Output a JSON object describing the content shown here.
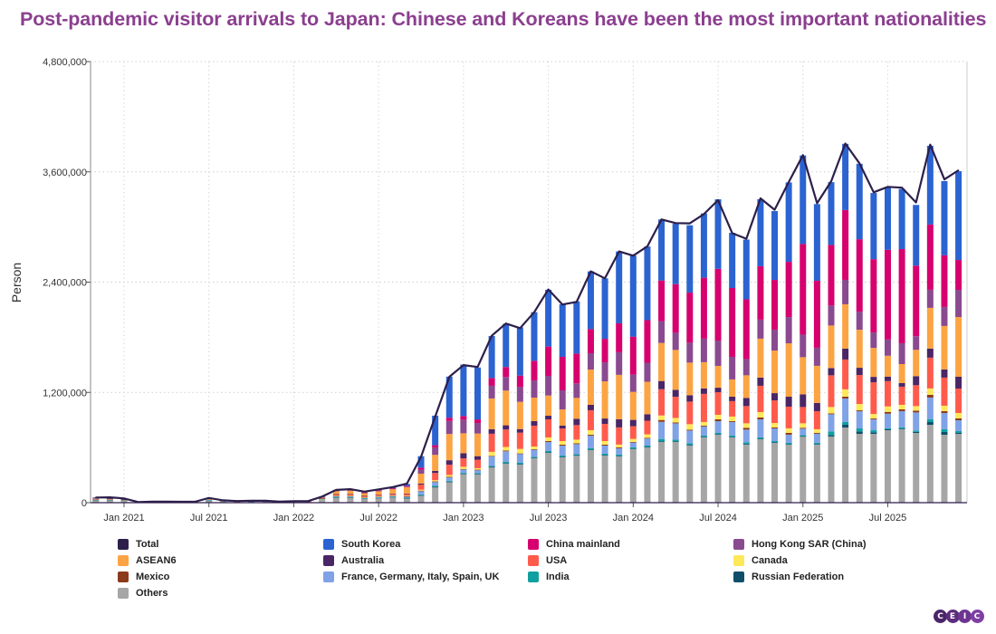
{
  "title": "Post-pandemic visitor arrivals to Japan: Chinese and Koreans have been the most important nationalities",
  "logo": {
    "text": [
      "C",
      "E",
      "I",
      "C"
    ],
    "colors": [
      "#4b2468",
      "#5c2c7d",
      "#6d3590",
      "#7e3fa3"
    ]
  },
  "chart_data": {
    "type": "bar",
    "stacked": true,
    "title": "Post-pandemic visitor arrivals to Japan: Chinese and Koreans have been the most important nationalities",
    "ylabel": "Person",
    "xlabel": "",
    "ylim": [
      0,
      4800000
    ],
    "yticks": [
      "0",
      "1,200,000",
      "2,400,000",
      "3,600,000",
      "4,800,000"
    ],
    "ytick_values": [
      0,
      1200000,
      2400000,
      3600000,
      4800000
    ],
    "xticks": [
      "Jan 2021",
      "Jul 2021",
      "Jan 2022",
      "Jul 2022",
      "Jan 2023",
      "Jul 2023",
      "Jan 2024",
      "Jul 2024",
      "Jan 2025",
      "Jul 2025"
    ],
    "xtick_months": [
      "2021-01",
      "2021-07",
      "2022-01",
      "2022-07",
      "2023-01",
      "2023-07",
      "2024-01",
      "2024-07",
      "2025-01",
      "2025-07"
    ],
    "grid": true,
    "legend_position": "bottom",
    "categories": [
      "2020-11",
      "2020-12",
      "2021-01",
      "2021-02",
      "2021-03",
      "2021-04",
      "2021-05",
      "2021-06",
      "2021-07",
      "2021-08",
      "2021-09",
      "2021-10",
      "2021-11",
      "2021-12",
      "2022-01",
      "2022-02",
      "2022-03",
      "2022-04",
      "2022-05",
      "2022-06",
      "2022-07",
      "2022-08",
      "2022-09",
      "2022-10",
      "2022-11",
      "2022-12",
      "2023-01",
      "2023-02",
      "2023-03",
      "2023-04",
      "2023-05",
      "2023-06",
      "2023-07",
      "2023-08",
      "2023-09",
      "2023-10",
      "2023-11",
      "2023-12",
      "2024-01",
      "2024-02",
      "2024-03",
      "2024-04",
      "2024-05",
      "2024-06",
      "2024-07",
      "2024-08",
      "2024-09",
      "2024-10",
      "2024-11",
      "2024-12",
      "2025-01",
      "2025-02",
      "2025-03",
      "2025-04",
      "2025-05",
      "2025-06",
      "2025-07",
      "2025-08",
      "2025-09",
      "2025-10",
      "2025-11",
      "2025-12"
    ],
    "total": {
      "name": "Total",
      "type": "line",
      "color": "#2d1f4a",
      "values": [
        56000,
        58000,
        46000,
        7000,
        12000,
        11000,
        10000,
        10000,
        51000,
        26000,
        18000,
        22000,
        21000,
        12000,
        17000,
        17000,
        66000,
        139000,
        147000,
        120000,
        145000,
        170000,
        207000,
        499000,
        935000,
        1370000,
        1497000,
        1476000,
        1817000,
        1950000,
        1899000,
        2073000,
        2320000,
        2157000,
        2184000,
        2517000,
        2441000,
        2734000,
        2688000,
        2788000,
        3082000,
        3043000,
        3040000,
        3140000,
        3292000,
        2932000,
        2872000,
        3312000,
        3188000,
        3489000,
        3782000,
        3258000,
        3498000,
        3908000,
        3693000,
        3378000,
        3437000,
        3428000,
        3267000,
        3896000,
        3518000,
        3617000
      ]
    },
    "series": [
      {
        "name": "Others",
        "color": "#a6a6a6",
        "values": [
          30000,
          31000,
          25000,
          3000,
          7000,
          6000,
          6000,
          6000,
          23000,
          15000,
          10000,
          11000,
          11000,
          7000,
          10000,
          10000,
          34000,
          60000,
          59000,
          44000,
          52000,
          62000,
          50000,
          80000,
          170000,
          227000,
          315000,
          310000,
          385000,
          424000,
          414000,
          483000,
          542000,
          493000,
          512000,
          572000,
          512000,
          503000,
          582000,
          601000,
          660000,
          660000,
          621000,
          710000,
          739000,
          710000,
          631000,
          690000,
          650000,
          631000,
          720000,
          631000,
          720000,
          818000,
          749000,
          749000,
          788000,
          798000,
          759000,
          847000,
          739000,
          749000
        ]
      },
      {
        "name": "Russian Federation",
        "color": "#104e6a",
        "values": [
          1000,
          1000,
          1000,
          0,
          0,
          0,
          0,
          0,
          1000,
          0,
          0,
          0,
          0,
          0,
          0,
          0,
          0,
          1000,
          1000,
          1000,
          1000,
          1000,
          1000,
          2000,
          2000,
          2000,
          2000,
          2000,
          4000,
          6000,
          6000,
          6000,
          6000,
          6000,
          5000,
          6000,
          6000,
          6000,
          6000,
          6000,
          8000,
          8000,
          8000,
          6000,
          6000,
          6000,
          8000,
          6000,
          6000,
          6000,
          4000,
          6000,
          16000,
          30000,
          26000,
          16000,
          10000,
          7000,
          12000,
          30000,
          30000,
          10000
        ]
      },
      {
        "name": "India",
        "color": "#10a0a0",
        "values": [
          1000,
          1000,
          1000,
          0,
          0,
          0,
          0,
          0,
          1000,
          1000,
          0,
          1000,
          0,
          0,
          1000,
          1000,
          2000,
          3000,
          3000,
          2000,
          2000,
          3000,
          3000,
          8000,
          13000,
          10000,
          8000,
          8000,
          10000,
          14000,
          14000,
          10000,
          14000,
          14000,
          12000,
          14000,
          14000,
          14000,
          14000,
          14000,
          25000,
          18000,
          18000,
          14000,
          14000,
          14000,
          18000,
          14000,
          14000,
          14000,
          12000,
          14000,
          39000,
          30000,
          33000,
          23000,
          12000,
          14000,
          14000,
          30000,
          30000,
          20000
        ]
      },
      {
        "name": "France, Germany, Italy, Spain, UK",
        "color": "#80a2e6",
        "values": [
          4000,
          4000,
          3000,
          1000,
          1000,
          1000,
          1000,
          1000,
          8000,
          2000,
          1000,
          2000,
          2000,
          1000,
          1000,
          1000,
          4000,
          10000,
          12000,
          10000,
          12000,
          12000,
          15000,
          39000,
          43000,
          39000,
          39000,
          36000,
          108000,
          115000,
          99000,
          79000,
          99000,
          108000,
          108000,
          138000,
          89000,
          69000,
          56000,
          79000,
          187000,
          177000,
          138000,
          99000,
          128000,
          148000,
          138000,
          197000,
          138000,
          89000,
          69000,
          99000,
          187000,
          256000,
          187000,
          118000,
          158000,
          177000,
          197000,
          237000,
          177000,
          118000
        ]
      },
      {
        "name": "Mexico",
        "color": "#8b3a1a",
        "values": [
          0,
          0,
          0,
          0,
          0,
          0,
          0,
          0,
          0,
          0,
          0,
          0,
          0,
          0,
          0,
          0,
          0,
          1000,
          1000,
          1000,
          1000,
          1000,
          1000,
          2000,
          3000,
          3000,
          3000,
          3000,
          3000,
          8000,
          3000,
          3000,
          10000,
          10000,
          10000,
          10000,
          10000,
          10000,
          3000,
          5000,
          20000,
          10000,
          10000,
          10000,
          20000,
          10000,
          20000,
          20000,
          10000,
          20000,
          10000,
          10000,
          10000,
          20000,
          10000,
          10000,
          20000,
          20000,
          20000,
          30000,
          20000,
          20000
        ]
      },
      {
        "name": "Canada",
        "color": "#ffe75a",
        "values": [
          1000,
          1000,
          1000,
          0,
          0,
          0,
          0,
          0,
          1000,
          0,
          0,
          0,
          0,
          0,
          0,
          0,
          1000,
          2000,
          2000,
          2000,
          2000,
          2000,
          5000,
          10000,
          13000,
          20000,
          23000,
          16000,
          43000,
          39000,
          49000,
          30000,
          39000,
          39000,
          39000,
          49000,
          39000,
          30000,
          33000,
          39000,
          49000,
          49000,
          59000,
          39000,
          49000,
          49000,
          49000,
          59000,
          49000,
          49000,
          49000,
          39000,
          69000,
          79000,
          69000,
          49000,
          59000,
          49000,
          49000,
          69000,
          59000,
          59000
        ]
      },
      {
        "name": "USA",
        "color": "#ff5b4c",
        "values": [
          4000,
          4000,
          3000,
          1000,
          1000,
          1000,
          1000,
          1000,
          7000,
          2000,
          2000,
          2000,
          2000,
          1000,
          1000,
          1000,
          5000,
          12000,
          14000,
          11000,
          13000,
          14000,
          20000,
          56000,
          79000,
          112000,
          92000,
          92000,
          197000,
          190000,
          177000,
          227000,
          197000,
          138000,
          158000,
          217000,
          187000,
          187000,
          138000,
          148000,
          286000,
          230000,
          246000,
          306000,
          246000,
          168000,
          187000,
          286000,
          246000,
          236000,
          177000,
          197000,
          345000,
          325000,
          315000,
          345000,
          276000,
          197000,
          227000,
          335000,
          306000,
          266000
        ]
      },
      {
        "name": "Australia",
        "color": "#4a2665",
        "values": [
          1000,
          2000,
          1000,
          0,
          0,
          0,
          0,
          0,
          1000,
          0,
          0,
          0,
          0,
          0,
          0,
          0,
          2000,
          4000,
          4000,
          3000,
          4000,
          5000,
          5000,
          10000,
          23000,
          49000,
          56000,
          39000,
          49000,
          46000,
          39000,
          49000,
          39000,
          30000,
          69000,
          59000,
          59000,
          89000,
          69000,
          69000,
          89000,
          76000,
          69000,
          59000,
          49000,
          49000,
          89000,
          89000,
          79000,
          108000,
          138000,
          89000,
          79000,
          118000,
          79000,
          59000,
          49000,
          39000,
          99000,
          99000,
          89000,
          128000
        ]
      },
      {
        "name": "ASEAN6",
        "color": "#fca443",
        "values": [
          9000,
          9000,
          7000,
          1000,
          2000,
          2000,
          1000,
          1000,
          5000,
          4000,
          3000,
          4000,
          4000,
          2000,
          3000,
          3000,
          12000,
          35000,
          38000,
          32000,
          40000,
          48000,
          69000,
          108000,
          174000,
          286000,
          217000,
          246000,
          335000,
          378000,
          296000,
          256000,
          220000,
          177000,
          227000,
          384000,
          404000,
          483000,
          305000,
          355000,
          414000,
          434000,
          355000,
          286000,
          237000,
          187000,
          246000,
          424000,
          463000,
          581000,
          404000,
          404000,
          463000,
          483000,
          414000,
          315000,
          227000,
          207000,
          286000,
          443000,
          473000,
          650000
        ]
      },
      {
        "name": "Hong Kong SAR (China)",
        "color": "#8a4a8f",
        "values": [
          1000,
          1000,
          1000,
          0,
          0,
          0,
          0,
          0,
          1000,
          0,
          0,
          0,
          0,
          0,
          0,
          0,
          1000,
          2000,
          2000,
          2000,
          3000,
          4000,
          5000,
          43000,
          82000,
          141000,
          148000,
          115000,
          138000,
          148000,
          161000,
          187000,
          214000,
          207000,
          158000,
          177000,
          207000,
          246000,
          187000,
          207000,
          237000,
          187000,
          217000,
          256000,
          276000,
          246000,
          177000,
          207000,
          227000,
          286000,
          246000,
          197000,
          217000,
          266000,
          197000,
          168000,
          177000,
          227000,
          148000,
          197000,
          207000,
          296000
        ]
      },
      {
        "name": "China mainland",
        "color": "#d6006e",
        "values": [
          3000,
          3000,
          2000,
          1000,
          1000,
          1000,
          1000,
          1000,
          2000,
          2000,
          2000,
          2000,
          2000,
          1000,
          1000,
          1000,
          3000,
          5000,
          5000,
          4000,
          5000,
          6000,
          10000,
          23000,
          23000,
          36000,
          40000,
          39000,
          85000,
          108000,
          125000,
          214000,
          319000,
          365000,
          325000,
          263000,
          256000,
          315000,
          414000,
          463000,
          443000,
          529000,
          545000,
          663000,
          781000,
          749000,
          650000,
          581000,
          542000,
          601000,
          986000,
          729000,
          660000,
          760000,
          788000,
          798000,
          976000,
          1025000,
          769000,
          710000,
          562000,
          325000
        ]
      },
      {
        "name": "South Korea",
        "color": "#2b63d1",
        "values": [
          1000,
          1000,
          1000,
          0,
          0,
          0,
          0,
          0,
          1000,
          0,
          0,
          0,
          0,
          0,
          0,
          0,
          2000,
          4000,
          6000,
          8000,
          10000,
          12000,
          20000,
          125000,
          322000,
          447000,
          560000,
          565000,
          457000,
          470000,
          526000,
          529000,
          618000,
          572000,
          568000,
          628000,
          658000,
          782000,
          881000,
          802000,
          664000,
          657000,
          733000,
          700000,
          756000,
          601000,
          650000,
          729000,
          749000,
          864000,
          963000,
          834000,
          683000,
          720000,
          821000,
          720000,
          673000,
          654000,
          660000,
          857000,
          808000,
          966000
        ]
      }
    ],
    "legend": [
      {
        "label": "Total",
        "color": "#2d1f4a"
      },
      {
        "label": "South Korea",
        "color": "#2b63d1"
      },
      {
        "label": "China mainland",
        "color": "#d6006e"
      },
      {
        "label": "Hong Kong SAR (China)",
        "color": "#8a4a8f"
      },
      {
        "label": "ASEAN6",
        "color": "#fca443"
      },
      {
        "label": "Australia",
        "color": "#4a2665"
      },
      {
        "label": "USA",
        "color": "#ff5b4c"
      },
      {
        "label": "Canada",
        "color": "#ffe75a"
      },
      {
        "label": "Mexico",
        "color": "#8b3a1a"
      },
      {
        "label": "France, Germany, Italy, Spain, UK",
        "color": "#80a2e6"
      },
      {
        "label": "India",
        "color": "#10a0a0"
      },
      {
        "label": "Russian Federation",
        "color": "#104e6a"
      },
      {
        "label": "Others",
        "color": "#a6a6a6"
      }
    ]
  }
}
